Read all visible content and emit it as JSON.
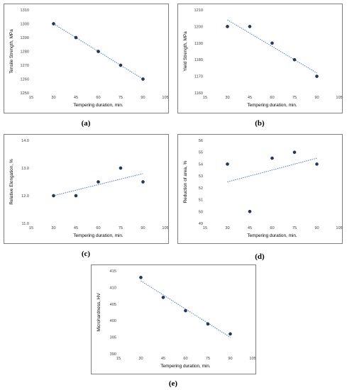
{
  "chart_data": [
    {
      "id": "a",
      "type": "scatter",
      "caption": "(a)",
      "xlabel": "Tempering duration, min.",
      "ylabel": "Tensile Strength, MPa",
      "xlim": [
        15,
        105
      ],
      "ylim": [
        1250,
        1310
      ],
      "xticks": [
        "15",
        "30",
        "45",
        "60",
        "75",
        "90",
        "105"
      ],
      "yticks": [
        "1250",
        "1260",
        "1270",
        "1280",
        "1290",
        "1300",
        "1310"
      ],
      "x": [
        30,
        45,
        60,
        75,
        90
      ],
      "y": [
        1300,
        1290,
        1280,
        1270,
        1260
      ],
      "trendline": {
        "type": "linear",
        "start": [
          30,
          1300
        ],
        "end": [
          90,
          1260
        ]
      },
      "marker_color": "#1f3864",
      "trend_color": "#4472c4"
    },
    {
      "id": "b",
      "type": "scatter",
      "caption": "(b)",
      "xlabel": "Tempering duration, min.",
      "ylabel": "Yield Strength, MPa",
      "xlim": [
        15,
        105
      ],
      "ylim": [
        1160,
        1210
      ],
      "xticks": [
        "15",
        "30",
        "45",
        "60",
        "75",
        "90",
        "105"
      ],
      "yticks": [
        "1160",
        "1170",
        "1180",
        "1190",
        "1200",
        "1210"
      ],
      "x": [
        30,
        45,
        60,
        75,
        90
      ],
      "y": [
        1200,
        1200,
        1190,
        1180,
        1170
      ],
      "trendline": {
        "type": "linear",
        "start": [
          30,
          1204
        ],
        "end": [
          90,
          1172
        ]
      },
      "marker_color": "#1f3864",
      "trend_color": "#4472c4"
    },
    {
      "id": "c",
      "type": "scatter",
      "caption": "(c)",
      "xlabel": "Tempering duration, min.",
      "ylabel": "Relative Elongation, %",
      "xlim": [
        15,
        105
      ],
      "ylim": [
        11.0,
        14.0
      ],
      "xticks": [
        "15",
        "30",
        "45",
        "60",
        "75",
        "90",
        "105"
      ],
      "yticks": [
        "11.0",
        "12.0",
        "13.0",
        "14.0"
      ],
      "x": [
        30,
        45,
        60,
        75,
        90
      ],
      "y": [
        12.0,
        12.0,
        12.5,
        13.0,
        12.5
      ],
      "trendline": {
        "type": "linear",
        "start": [
          30,
          12.0
        ],
        "end": [
          90,
          12.8
        ]
      },
      "marker_color": "#1f3864",
      "trend_color": "#4472c4"
    },
    {
      "id": "d",
      "type": "scatter",
      "caption": "(d)",
      "xlabel": "Tempering duration, min.",
      "ylabel": "Reduction of area, %",
      "xlim": [
        15,
        105
      ],
      "ylim": [
        49,
        56
      ],
      "xticks": [
        "15",
        "30",
        "45",
        "60",
        "75",
        "90",
        "105"
      ],
      "yticks": [
        "49",
        "50",
        "51",
        "52",
        "53",
        "54",
        "55",
        "56"
      ],
      "x": [
        30,
        45,
        60,
        75,
        90
      ],
      "y": [
        54,
        50,
        54.5,
        55,
        54
      ],
      "trendline": {
        "type": "linear",
        "start": [
          30,
          52.5
        ],
        "end": [
          90,
          54.5
        ]
      },
      "marker_color": "#1f3864",
      "trend_color": "#4472c4"
    },
    {
      "id": "e",
      "type": "scatter",
      "caption": "(e)",
      "xlabel": "Tempering duration, min.",
      "ylabel": "Microhardness, HV",
      "xlim": [
        15,
        105
      ],
      "ylim": [
        390,
        415
      ],
      "xticks": [
        "15",
        "30",
        "45",
        "60",
        "75",
        "90",
        "105"
      ],
      "yticks": [
        "390",
        "395",
        "400",
        "405",
        "410",
        "415"
      ],
      "x": [
        30,
        45,
        60,
        75,
        90
      ],
      "y": [
        413,
        407,
        403,
        399,
        396
      ],
      "trendline": {
        "type": "linear",
        "start": [
          30,
          412
        ],
        "end": [
          90,
          395
        ]
      },
      "marker_color": "#1f3864",
      "trend_color": "#4472c4"
    }
  ]
}
